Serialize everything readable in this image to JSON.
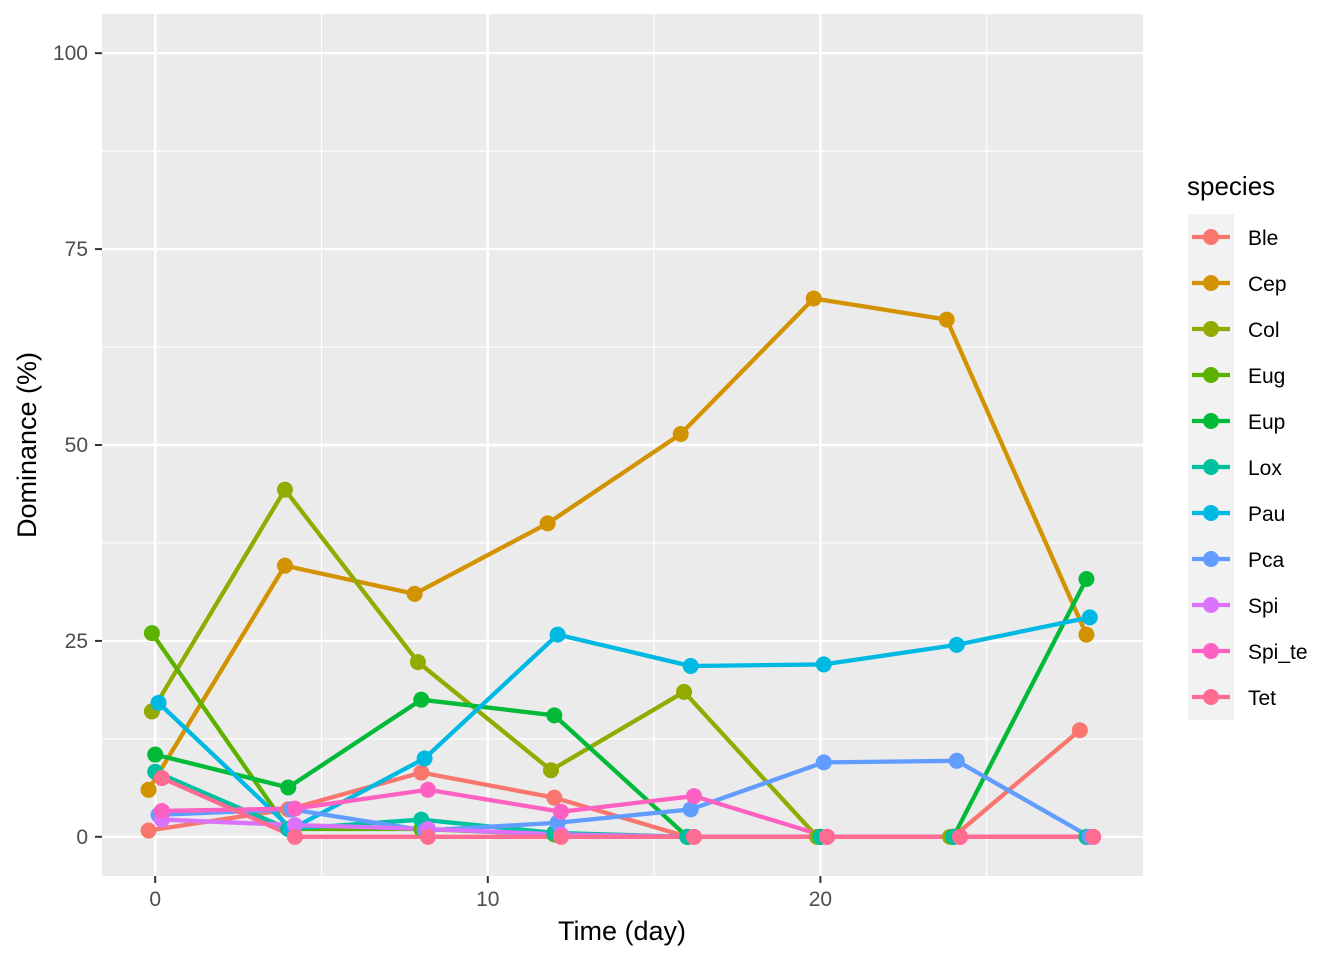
{
  "chart_data": {
    "type": "line",
    "xlabel": "Time (day)",
    "ylabel": "Dominance (%)",
    "xlim": [
      -1.6,
      29.7
    ],
    "ylim": [
      -5,
      105
    ],
    "x_ticks": [
      0,
      10,
      20
    ],
    "y_ticks": [
      0,
      25,
      50,
      75,
      100
    ],
    "x_tick_labels": [
      "0",
      "10",
      "20"
    ],
    "y_tick_labels": [
      "0",
      "25",
      "50",
      "75",
      "100"
    ],
    "grid": true,
    "legend_title": "species",
    "legend_position": "right",
    "series": [
      {
        "name": "Ble",
        "color": "#F8766D",
        "x": [
          -0.2,
          4,
          8,
          12,
          16,
          20,
          24,
          27.8
        ],
        "y": [
          0.8,
          3.5,
          8.2,
          5.0,
          0,
          0,
          0,
          13.6
        ]
      },
      {
        "name": "Cep",
        "color": "#D39200",
        "x": [
          -0.2,
          3.9,
          7.8,
          11.8,
          15.8,
          19.8,
          23.8,
          28
        ],
        "y": [
          6.0,
          34.6,
          31.0,
          40.0,
          51.4,
          68.7,
          66.0,
          25.8
        ]
      },
      {
        "name": "Col",
        "color": "#93AA00",
        "x": [
          -0.1,
          3.9,
          7.9,
          11.9,
          15.9,
          19.9,
          23.9,
          28
        ],
        "y": [
          16.0,
          44.3,
          22.3,
          8.5,
          18.5,
          0,
          0,
          0
        ]
      },
      {
        "name": "Eug",
        "color": "#5BB300",
        "x": [
          -0.1,
          4,
          8,
          12,
          16,
          20,
          24,
          28
        ],
        "y": [
          26.0,
          1.0,
          1.0,
          0.3,
          0,
          0,
          0,
          0
        ]
      },
      {
        "name": "Eup",
        "color": "#00BA38",
        "x": [
          0,
          4,
          8,
          12,
          16,
          20,
          24,
          28
        ],
        "y": [
          10.5,
          6.3,
          17.5,
          15.5,
          0,
          0,
          0,
          32.9
        ]
      },
      {
        "name": "Lox",
        "color": "#00C19F",
        "x": [
          0,
          4,
          8,
          12,
          16,
          20,
          24,
          28
        ],
        "y": [
          8.3,
          1.0,
          2.2,
          0.5,
          0,
          0,
          0,
          0
        ]
      },
      {
        "name": "Pau",
        "color": "#00B9E3",
        "x": [
          0.1,
          4.1,
          8.1,
          12.1,
          16.1,
          20.1,
          24.1,
          28.1
        ],
        "y": [
          17.1,
          1.0,
          10.0,
          25.8,
          21.8,
          22.0,
          24.5,
          28.0
        ]
      },
      {
        "name": "Pca",
        "color": "#619CFF",
        "x": [
          0.1,
          4.1,
          8.1,
          12.1,
          16.1,
          20.1,
          24.1,
          28.1
        ],
        "y": [
          2.8,
          3.5,
          0.8,
          1.8,
          3.5,
          9.5,
          9.7,
          0
        ]
      },
      {
        "name": "Spi",
        "color": "#DB72FB",
        "x": [
          0.2,
          4.2,
          8.2,
          12.2,
          16.2,
          20.2,
          24.2,
          28.2
        ],
        "y": [
          2.2,
          1.5,
          1.0,
          0.3,
          0,
          0,
          0,
          0
        ]
      },
      {
        "name": "Spi_te",
        "color": "#FF61C3",
        "x": [
          0.2,
          4.2,
          8.2,
          12.2,
          16.2,
          20.2,
          24.2,
          28.2
        ],
        "y": [
          3.3,
          3.6,
          6.0,
          3.2,
          5.2,
          0,
          0,
          0
        ]
      },
      {
        "name": "Tet",
        "color": "#FF6C91",
        "x": [
          0.2,
          4.2,
          8.2,
          12.2,
          16.2,
          20.2,
          24.2,
          28.2
        ],
        "y": [
          7.5,
          0,
          0,
          0,
          0,
          0,
          0,
          0
        ]
      }
    ]
  }
}
